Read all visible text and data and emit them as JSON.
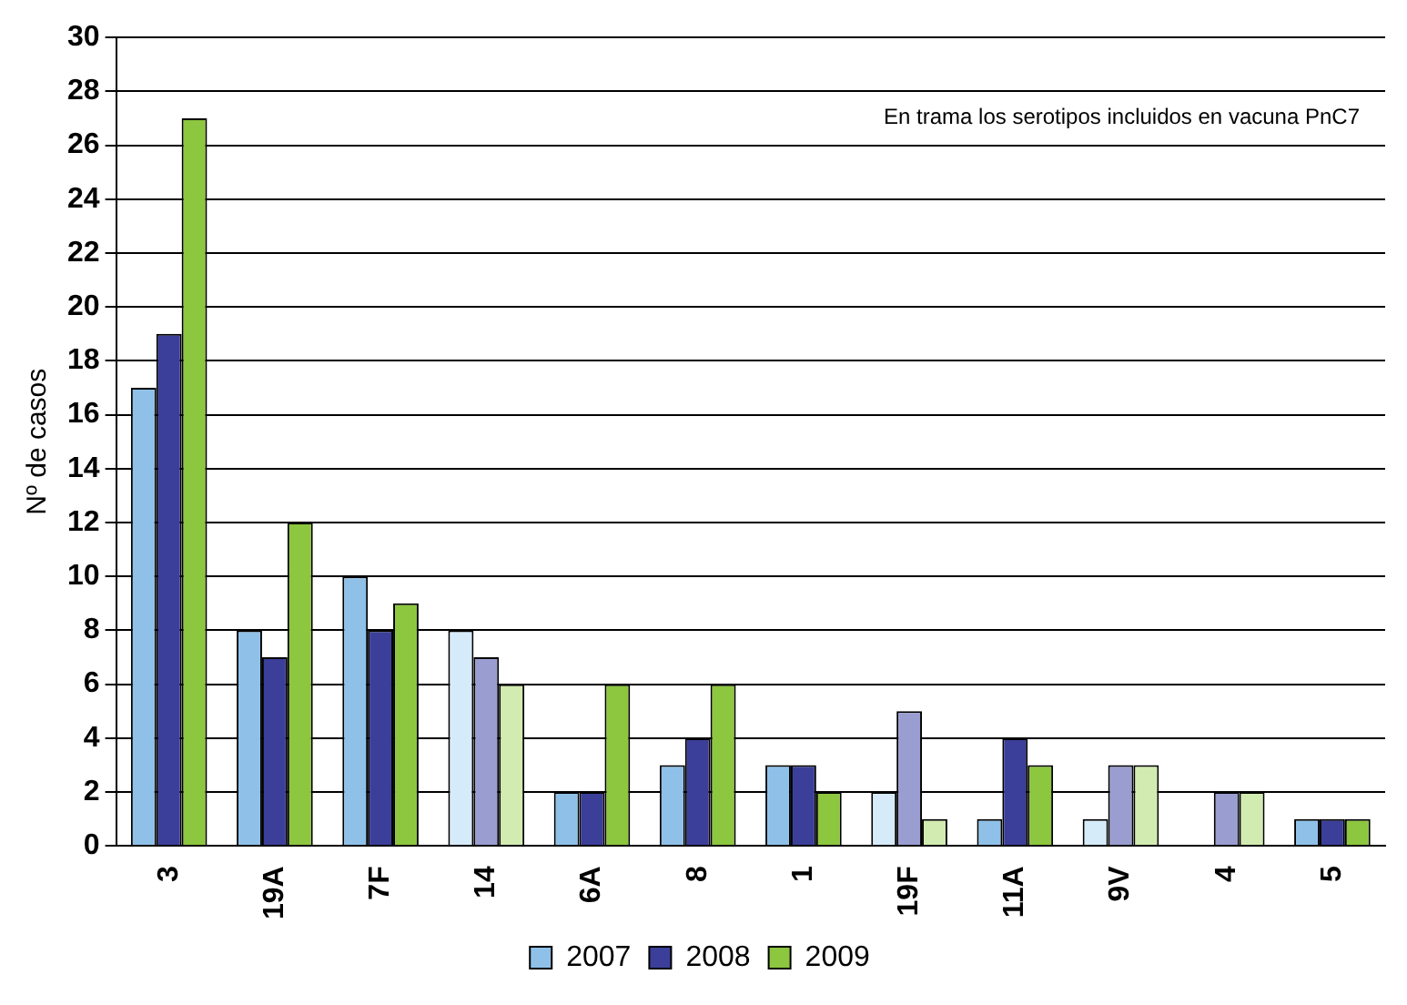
{
  "chart_data": {
    "type": "bar",
    "ylabel": "Nº de casos",
    "categories": [
      "3",
      "19A",
      "7F",
      "14",
      "6A",
      "8",
      "1",
      "19F",
      "11A",
      "9V",
      "4",
      "5"
    ],
    "series": [
      {
        "name": "2007",
        "color": "#8fc1e8",
        "colors": [
          "#8fc1e8",
          "#8fc1e8",
          "#8fc1e8",
          "#d6ebfa",
          "#8fc1e8",
          "#8fc1e8",
          "#8fc1e8",
          "#d6ebfa",
          "#8fc1e8",
          "#d6ebfa",
          "#d6ebfa",
          "#8fc1e8"
        ],
        "values": [
          17,
          8,
          10,
          8,
          2,
          3,
          3,
          2,
          1,
          1,
          0,
          1
        ]
      },
      {
        "name": "2008",
        "color": "#3b3f99",
        "colors": [
          "#3b3f99",
          "#3b3f99",
          "#3b3f99",
          "#9a9dd0",
          "#3b3f99",
          "#3b3f99",
          "#3b3f99",
          "#9a9dd0",
          "#3b3f99",
          "#9a9dd0",
          "#9a9dd0",
          "#3b3f99"
        ],
        "values": [
          19,
          7,
          8,
          7,
          2,
          4,
          3,
          5,
          4,
          3,
          2,
          1
        ]
      },
      {
        "name": "2009",
        "color": "#8dc63f",
        "colors": [
          "#8dc63f",
          "#8dc63f",
          "#8dc63f",
          "#d2ebb0",
          "#8dc63f",
          "#8dc63f",
          "#8dc63f",
          "#d2ebb0",
          "#8dc63f",
          "#d2ebb0",
          "#d2ebb0",
          "#8dc63f"
        ],
        "values": [
          27,
          12,
          9,
          6,
          6,
          6,
          2,
          1,
          3,
          3,
          2,
          1
        ]
      }
    ],
    "ylim": [
      0,
      30
    ],
    "yticks": [
      0,
      2,
      4,
      6,
      8,
      10,
      12,
      14,
      16,
      18,
      20,
      22,
      24,
      26,
      28,
      30
    ],
    "grid": "y",
    "legend": "bottom",
    "annotations": [
      "En trama los serotipos incluidos en vacuna PnC7"
    ]
  }
}
